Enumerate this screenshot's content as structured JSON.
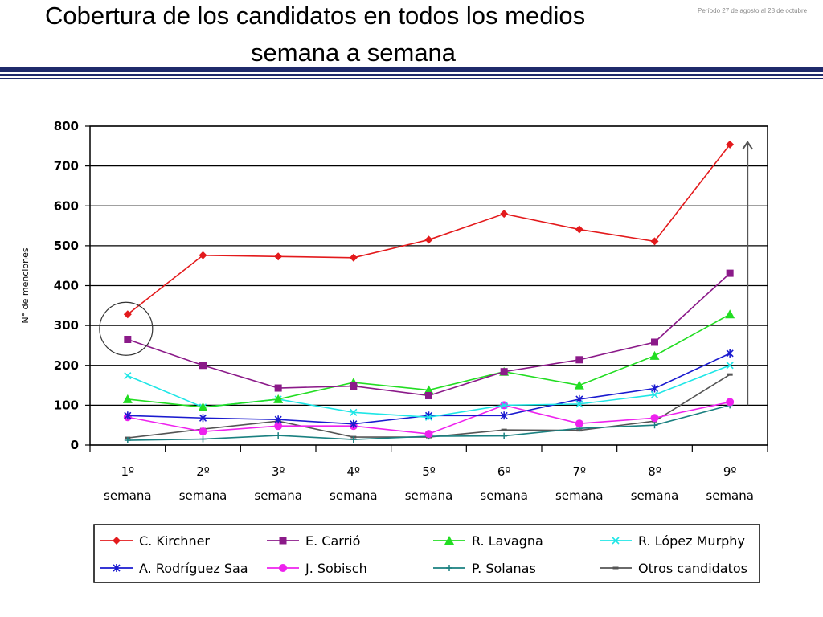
{
  "header": {
    "title_line1": "Cobertura de los candidatos en todos los medios",
    "title_line2": "semana a semana",
    "period": "Período 27 de agosto al 28 de octubre"
  },
  "chart_data": {
    "type": "line",
    "ylabel": "N° de menciones",
    "ylim": [
      0,
      800
    ],
    "yticks": [
      "0",
      "100",
      "200",
      "300",
      "400",
      "500",
      "600",
      "700",
      "800"
    ],
    "categories": [
      [
        "1º",
        "semana"
      ],
      [
        "2º",
        "semana"
      ],
      [
        "3º",
        "semana"
      ],
      [
        "4º",
        "semana"
      ],
      [
        "5º",
        "semana"
      ],
      [
        "6º",
        "semana"
      ],
      [
        "7º",
        "semana"
      ],
      [
        "8º",
        "semana"
      ],
      [
        "9º",
        "semana"
      ]
    ],
    "grid": true,
    "legend_position": "bottom",
    "series": [
      {
        "name": "C. Kirchner",
        "color": "#e31a1c",
        "marker": "diamond",
        "values": [
          328,
          476,
          473,
          470,
          515,
          580,
          541,
          511,
          754
        ]
      },
      {
        "name": "E. Carrió",
        "color": "#8b1a89",
        "marker": "square",
        "values": [
          265,
          200,
          143,
          148,
          124,
          184,
          214,
          258,
          431
        ]
      },
      {
        "name": "R. Lavagna",
        "color": "#22dd22",
        "marker": "triangle",
        "values": [
          115,
          95,
          115,
          157,
          138,
          184,
          150,
          224,
          328
        ]
      },
      {
        "name": "R. López Murphy",
        "color": "#1fe6e6",
        "marker": "x",
        "values": [
          174,
          95,
          115,
          82,
          70,
          100,
          103,
          126,
          200
        ]
      },
      {
        "name": "A. Rodríguez Saa",
        "color": "#1a1acf",
        "marker": "star",
        "values": [
          74,
          68,
          64,
          53,
          74,
          74,
          115,
          142,
          230
        ]
      },
      {
        "name": "J. Sobisch",
        "color": "#ee22ee",
        "marker": "circle",
        "values": [
          70,
          34,
          48,
          48,
          28,
          100,
          54,
          68,
          108
        ]
      },
      {
        "name": "P. Solanas",
        "color": "#1a8080",
        "marker": "plus",
        "values": [
          12,
          15,
          24,
          14,
          22,
          23,
          42,
          50,
          100
        ]
      },
      {
        "name": "Otros candidatos",
        "color": "#555555",
        "marker": "dash",
        "values": [
          18,
          40,
          60,
          20,
          20,
          38,
          37,
          60,
          177
        ]
      }
    ],
    "annotations": [
      {
        "type": "circle",
        "target_series": "C. Kirchner",
        "category_index": 0
      },
      {
        "type": "arrow",
        "from_value": 100,
        "to_value": 760,
        "category_index": 8
      }
    ]
  }
}
